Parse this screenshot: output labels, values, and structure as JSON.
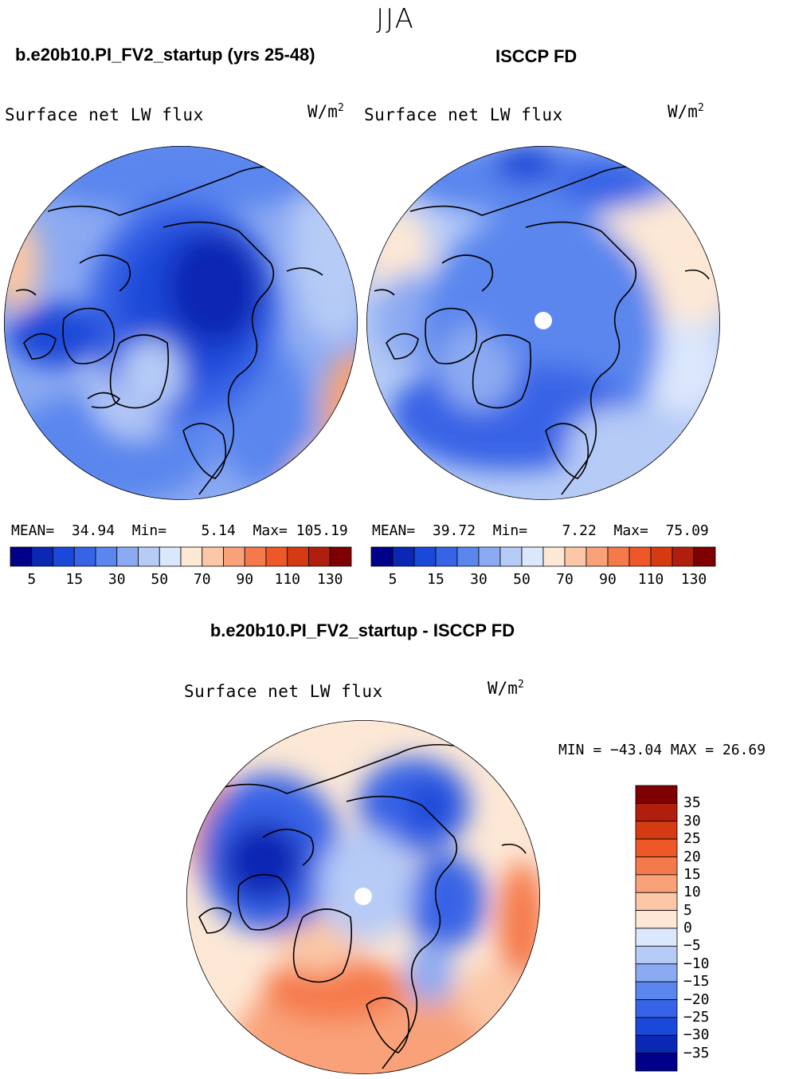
{
  "page": {
    "season": "JJA",
    "model_title": "b.e20b10.PI_FV2_startup (yrs 25-48)",
    "obs_title": "ISCCP FD",
    "diff_title": "b.e20b10.PI_FV2_startup - ISCCP FD"
  },
  "panels": {
    "model": {
      "variable": "Surface net LW flux",
      "units": "W/m",
      "units_exp": "2",
      "mean_label": "MEAN=",
      "mean": "34.94",
      "min_label": "Min=",
      "min": "5.14",
      "max_label": "Max=",
      "max": "105.19"
    },
    "obs": {
      "variable": "Surface net LW flux",
      "units": "W/m",
      "units_exp": "2",
      "mean_label": "MEAN=",
      "mean": "39.72",
      "min_label": "Min=",
      "min": "7.22",
      "max_label": "Max=",
      "max": "75.09"
    },
    "diff": {
      "variable": "Surface net LW flux",
      "units": "W/m",
      "units_exp": "2",
      "minmax": "MIN = −43.04 MAX =   26.69"
    }
  },
  "colorbars": {
    "absolute": {
      "colors": [
        "#00008b",
        "#0a28b4",
        "#1a48d8",
        "#3764e6",
        "#5a86ee",
        "#8caaf2",
        "#b6cbf6",
        "#dbe7fb",
        "#fde8d6",
        "#fbc7a6",
        "#f9a279",
        "#f57a4b",
        "#ee5828",
        "#d63a13",
        "#b01f0d",
        "#7f0000"
      ],
      "tick_labels": [
        "5",
        "15",
        "30",
        "50",
        "70",
        "90",
        "110",
        "130"
      ]
    },
    "difference": {
      "colors": [
        "#7f0000",
        "#b01f0d",
        "#d63a13",
        "#ee5828",
        "#f57a4b",
        "#f9a279",
        "#fbc7a6",
        "#fde8d6",
        "#dbe7fb",
        "#b6cbf6",
        "#8caaf2",
        "#5a86ee",
        "#3764e6",
        "#1a48d8",
        "#0a28b4",
        "#00008b"
      ],
      "tick_labels": [
        "35",
        "30",
        "25",
        "20",
        "15",
        "10",
        "5",
        "0",
        "−5",
        "−10",
        "−15",
        "−20",
        "−25",
        "−30",
        "−35"
      ]
    }
  },
  "chart_data": [
    {
      "type": "heatmap",
      "title": "b.e20b10.PI_FV2_startup (yrs 25-48)",
      "subtitle": "Surface net LW flux (W/m2), JJA, north polar projection",
      "color_levels": [
        5,
        10,
        15,
        20,
        30,
        40,
        50,
        60,
        70,
        80,
        90,
        100,
        110,
        120,
        130
      ],
      "stats": {
        "mean": 34.94,
        "min": 5.14,
        "max": 105.19
      }
    },
    {
      "type": "heatmap",
      "title": "ISCCP FD",
      "subtitle": "Surface net LW flux (W/m2), JJA, north polar projection",
      "color_levels": [
        5,
        10,
        15,
        20,
        30,
        40,
        50,
        60,
        70,
        80,
        90,
        100,
        110,
        120,
        130
      ],
      "stats": {
        "mean": 39.72,
        "min": 7.22,
        "max": 75.09
      }
    },
    {
      "type": "heatmap",
      "title": "b.e20b10.PI_FV2_startup - ISCCP FD",
      "subtitle": "Surface net LW flux (W/m2), JJA difference",
      "color_levels": [
        -35,
        -30,
        -25,
        -20,
        -15,
        -10,
        -5,
        0,
        5,
        10,
        15,
        20,
        25,
        30,
        35
      ],
      "stats": {
        "min": -43.04,
        "max": 26.69
      }
    }
  ]
}
